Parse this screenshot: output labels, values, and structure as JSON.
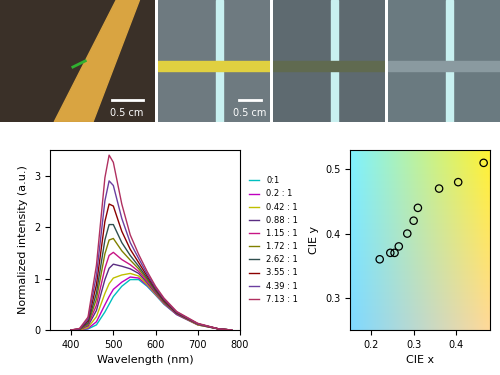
{
  "chart_data": [
    {
      "type": "line",
      "x_label": "Wavelength (nm)",
      "y_label": "Normalized intensity (a.u.)",
      "x": [
        400,
        420,
        440,
        460,
        480,
        490,
        500,
        520,
        540,
        560,
        580,
        600,
        620,
        650,
        700,
        750,
        780
      ],
      "xlim": [
        350,
        800
      ],
      "xticks": [
        400,
        500,
        600,
        700,
        800
      ],
      "ylim": [
        0,
        3.5
      ],
      "yticks": [
        0,
        1,
        2,
        3
      ],
      "legend": "right",
      "series": [
        {
          "name": "0:1",
          "color": "#00bfbf",
          "values": [
            0,
            0,
            0.02,
            0.1,
            0.35,
            0.5,
            0.65,
            0.85,
            0.98,
            0.98,
            0.85,
            0.68,
            0.5,
            0.3,
            0.1,
            0.02,
            0
          ]
        },
        {
          "name": "0.2 : 1",
          "color": "#bf00bf",
          "values": [
            0,
            0,
            0.03,
            0.16,
            0.49,
            0.65,
            0.79,
            0.93,
            1.03,
            1.01,
            0.87,
            0.69,
            0.51,
            0.3,
            0.1,
            0.02,
            0
          ]
        },
        {
          "name": "0.42 : 1",
          "color": "#bfbf00",
          "values": [
            0,
            0,
            0.05,
            0.26,
            0.71,
            0.9,
            1.01,
            1.07,
            1.1,
            1.05,
            0.89,
            0.7,
            0.52,
            0.31,
            0.1,
            0.02,
            0
          ]
        },
        {
          "name": "0.88 : 1",
          "color": "#5a2d82",
          "values": [
            0,
            0.01,
            0.08,
            0.38,
            0.98,
            1.2,
            1.28,
            1.24,
            1.19,
            1.1,
            0.92,
            0.72,
            0.53,
            0.31,
            0.11,
            0.02,
            0
          ]
        },
        {
          "name": "1.15 : 1",
          "color": "#c71585",
          "values": [
            0,
            0.01,
            0.1,
            0.48,
            1.2,
            1.45,
            1.51,
            1.37,
            1.27,
            1.14,
            0.95,
            0.74,
            0.54,
            0.32,
            0.11,
            0.02,
            0
          ]
        },
        {
          "name": "1.72 : 1",
          "color": "#808000",
          "values": [
            0,
            0.01,
            0.12,
            0.6,
            1.48,
            1.75,
            1.78,
            1.54,
            1.36,
            1.19,
            0.98,
            0.76,
            0.55,
            0.33,
            0.11,
            0.02,
            0
          ]
        },
        {
          "name": "2.62 : 1",
          "color": "#2f4f4f",
          "values": [
            0,
            0.02,
            0.14,
            0.72,
            1.75,
            2.05,
            2.05,
            1.7,
            1.45,
            1.24,
            1.01,
            0.77,
            0.56,
            0.33,
            0.12,
            0.02,
            0
          ]
        },
        {
          "name": "3.55 : 1",
          "color": "#8b0000",
          "values": [
            0,
            0.02,
            0.18,
            0.88,
            2.11,
            2.45,
            2.41,
            1.92,
            1.57,
            1.31,
            1.05,
            0.8,
            0.58,
            0.34,
            0.12,
            0.02,
            0
          ]
        },
        {
          "name": "4.39 : 1",
          "color": "#6b3fa0",
          "values": [
            0,
            0.02,
            0.21,
            1.06,
            2.51,
            2.9,
            2.81,
            2.17,
            1.7,
            1.39,
            1.09,
            0.82,
            0.6,
            0.35,
            0.12,
            0.02,
            0
          ]
        },
        {
          "name": "7.13 : 1",
          "color": "#b03060",
          "values": [
            0,
            0.03,
            0.25,
            1.26,
            2.96,
            3.4,
            3.26,
            2.45,
            1.85,
            1.47,
            1.14,
            0.85,
            0.62,
            0.36,
            0.13,
            0.02,
            0
          ]
        }
      ]
    },
    {
      "type": "scatter",
      "x_label": "CIE x",
      "y_label": "CIE y",
      "x": [
        0.22,
        0.245,
        0.255,
        0.265,
        0.285,
        0.3,
        0.31,
        0.36,
        0.405,
        0.465
      ],
      "values": [
        0.36,
        0.37,
        0.37,
        0.38,
        0.4,
        0.42,
        0.44,
        0.47,
        0.48,
        0.51
      ],
      "marker": "circle",
      "color": "#000000",
      "xlim": [
        0.15,
        0.48
      ],
      "xticks": [
        0.2,
        0.3,
        0.4
      ],
      "ylim": [
        0.25,
        0.53
      ],
      "yticks": [
        0.3,
        0.4,
        0.5
      ]
    }
  ],
  "photo_panels": [
    {
      "scale_bar": "0.5 cm"
    },
    {
      "scale_bar": "0.5 cm"
    }
  ]
}
